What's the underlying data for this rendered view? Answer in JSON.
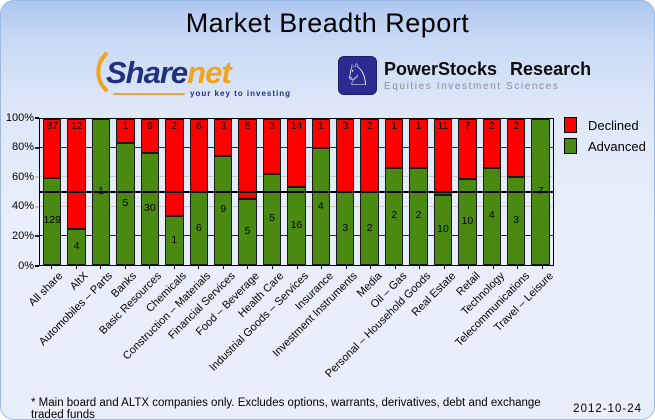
{
  "title": "Market Breadth Report",
  "logos": {
    "sharenet": {
      "part1": "Share",
      "part2": "net",
      "tagline": "your key to investing",
      "navy": "#21317e",
      "orange": "#f0a51f"
    },
    "powerstocks": {
      "name": "PowerStocks Research",
      "tagline": "Equities Investment Sciences",
      "icon": "knight-chess-icon",
      "square_color": "#2b2b91",
      "knight_glyph": "♘"
    }
  },
  "chart_data": {
    "type": "bar",
    "stacked": true,
    "percent_mode": "each bar normalized to 100%; segment height = count / (advanced + declined)",
    "categories": [
      "All share",
      "AltX",
      "Automobiles – Parts",
      "Banks",
      "Basic Resources",
      "Chemicals",
      "Construction – Materials",
      "Financial Services",
      "Food – Beverage",
      "Health Care",
      "Industrial Goods – Services",
      "Insurance",
      "Investment Instruments",
      "Media",
      "Oil – Gas",
      "Personal – Household Goods",
      "Real Estate",
      "Retail",
      "Technology",
      "Telecommunications",
      "Travel – Leisure"
    ],
    "series": [
      {
        "name": "Declined",
        "color": "#ff0000",
        "values": [
          87,
          12,
          0,
          1,
          9,
          2,
          6,
          3,
          6,
          3,
          14,
          1,
          3,
          2,
          1,
          1,
          11,
          7,
          2,
          2,
          0
        ]
      },
      {
        "name": "Advanced",
        "color": "#4a8a12",
        "values": [
          129,
          4,
          1,
          5,
          30,
          1,
          6,
          9,
          5,
          5,
          16,
          4,
          3,
          2,
          2,
          2,
          10,
          10,
          4,
          3,
          7
        ]
      }
    ],
    "y_axis": {
      "ticks": [
        "0%",
        "20%",
        "40%",
        "60%",
        "80%",
        "100%"
      ],
      "min": 0,
      "max": 100
    },
    "reference_line_pct": 50,
    "grid": {
      "navy_lines_pct": [
        20,
        80
      ],
      "gray_lines_pct": [
        40,
        60
      ],
      "navy_color": "#1b1b8f",
      "gray_color": "#c9c9c9",
      "ref_color": "#000000"
    },
    "legend": {
      "position": "top-right",
      "entries": [
        "Declined",
        "Advanced"
      ]
    }
  },
  "footer": {
    "note": "* Main board and ALTX companies only. Excludes options, warrants, derivatives, debt and exchange traded funds",
    "date": "2012-10-24"
  }
}
